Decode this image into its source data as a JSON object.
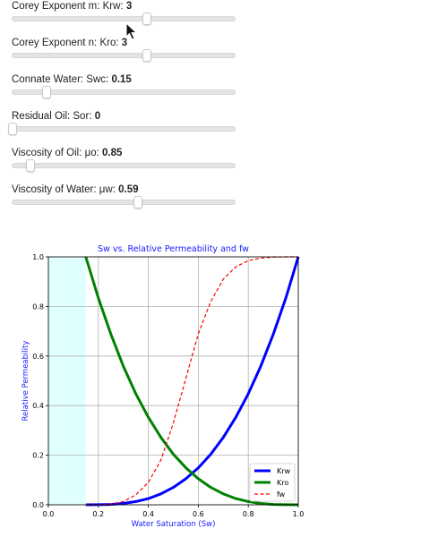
{
  "sliders": [
    {
      "label_prefix": "Corey Exponent m: Krw: ",
      "value_text": "3",
      "fraction": 0.6
    },
    {
      "label_prefix": "Corey Exponent n: Kro: ",
      "value_text": "3",
      "fraction": 0.6
    },
    {
      "label_prefix": "Connate Water: Swc: ",
      "value_text": "0.15",
      "fraction": 0.15
    },
    {
      "label_prefix": "Residual Oil: Sor: ",
      "value_text": "0",
      "fraction": 0.0
    },
    {
      "label_prefix": "Viscosity of Oil: μo: ",
      "value_text": "0.85",
      "fraction": 0.08
    },
    {
      "label_prefix": "Viscosity of Water: μw: ",
      "value_text": "0.59",
      "fraction": 0.56
    }
  ],
  "cursor": {
    "icon": "arrow-pointer-icon"
  },
  "chart_data": {
    "type": "line",
    "title": "Sw vs. Relative Permeability and fw",
    "xlabel": "Water Saturation (Sw)",
    "ylabel": "Relative Permeability",
    "xlim": [
      0,
      1
    ],
    "ylim": [
      0,
      1
    ],
    "xticks": [
      "0.0",
      "0.2",
      "0.4",
      "0.6",
      "0.8",
      "1.0"
    ],
    "yticks": [
      "0.0",
      "0.2",
      "0.4",
      "0.6",
      "0.8",
      "1.0"
    ],
    "grid": true,
    "legend_position": "lower-right",
    "shaded_region": {
      "x_from": 0,
      "x_to": 0.15,
      "color": "#e0ffff"
    },
    "title_color": "#1a1aff",
    "x": [
      0.15,
      0.2,
      0.25,
      0.3,
      0.35,
      0.4,
      0.45,
      0.5,
      0.55,
      0.6,
      0.65,
      0.7,
      0.75,
      0.8,
      0.85,
      0.9,
      0.95,
      1.0
    ],
    "series": [
      {
        "name": "Krw",
        "color": "#0000ff",
        "style": "solid",
        "values": [
          0.0,
          0.0002,
          0.0016,
          0.0055,
          0.013,
          0.025,
          0.044,
          0.07,
          0.105,
          0.149,
          0.204,
          0.272,
          0.353,
          0.448,
          0.559,
          0.688,
          0.834,
          1.0
        ]
      },
      {
        "name": "Kro",
        "color": "#008000",
        "style": "solid",
        "values": [
          1.0,
          0.834,
          0.688,
          0.559,
          0.448,
          0.353,
          0.272,
          0.204,
          0.149,
          0.105,
          0.07,
          0.044,
          0.025,
          0.013,
          0.0055,
          0.0016,
          0.0002,
          0.0
        ]
      },
      {
        "name": "fw",
        "color": "#ff0000",
        "style": "dashed",
        "values": [
          0.0,
          0.0003,
          0.003,
          0.013,
          0.04,
          0.09,
          0.18,
          0.33,
          0.51,
          0.69,
          0.82,
          0.91,
          0.96,
          0.985,
          0.995,
          0.999,
          1.0,
          1.0
        ]
      }
    ]
  }
}
